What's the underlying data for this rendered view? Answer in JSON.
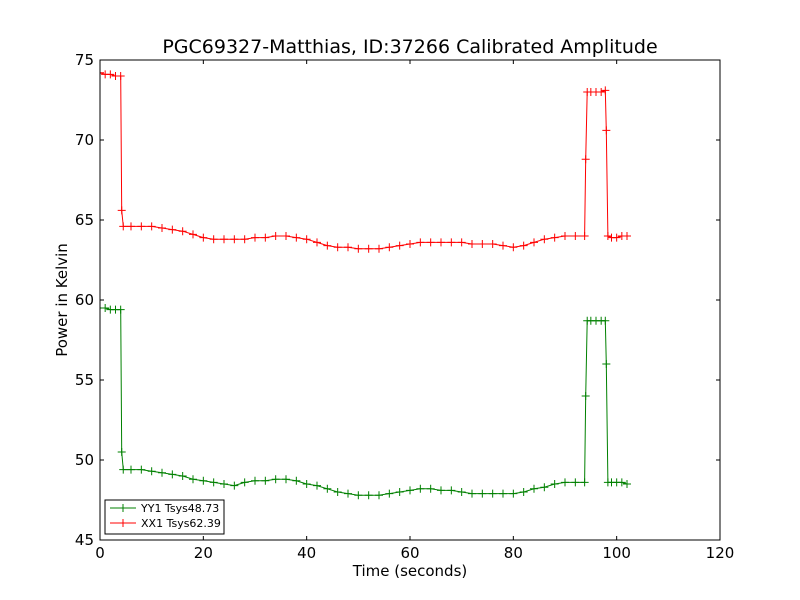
{
  "chart_data": {
    "type": "line",
    "title": "PGC69327-Matthias, ID:37266 Calibrated Amplitude",
    "xlabel": "Time (seconds)",
    "ylabel": "Power in Kelvin",
    "xlim": [
      0,
      120
    ],
    "ylim": [
      45,
      75
    ],
    "xticks": [
      0,
      20,
      40,
      60,
      80,
      100,
      120
    ],
    "yticks": [
      45,
      50,
      55,
      60,
      65,
      70,
      75
    ],
    "grid": false,
    "legend": "lower-left",
    "series": [
      {
        "name": "YY1 Tsys48.73",
        "color": "#008000",
        "marker": "+",
        "points": [
          [
            0,
            59.5
          ],
          [
            1,
            59.5
          ],
          [
            2,
            59.4
          ],
          [
            3,
            59.4
          ],
          [
            4,
            59.4
          ],
          [
            4.2,
            50.5
          ],
          [
            4.5,
            49.4
          ],
          [
            6,
            49.4
          ],
          [
            8,
            49.4
          ],
          [
            10,
            49.3
          ],
          [
            12,
            49.2
          ],
          [
            14,
            49.1
          ],
          [
            16,
            49.0
          ],
          [
            18,
            48.8
          ],
          [
            20,
            48.7
          ],
          [
            22,
            48.6
          ],
          [
            24,
            48.5
          ],
          [
            26,
            48.4
          ],
          [
            28,
            48.6
          ],
          [
            30,
            48.7
          ],
          [
            32,
            48.7
          ],
          [
            34,
            48.8
          ],
          [
            36,
            48.8
          ],
          [
            38,
            48.7
          ],
          [
            40,
            48.5
          ],
          [
            42,
            48.4
          ],
          [
            44,
            48.2
          ],
          [
            46,
            48.0
          ],
          [
            48,
            47.9
          ],
          [
            50,
            47.8
          ],
          [
            52,
            47.8
          ],
          [
            54,
            47.8
          ],
          [
            56,
            47.9
          ],
          [
            58,
            48.0
          ],
          [
            60,
            48.1
          ],
          [
            62,
            48.2
          ],
          [
            64,
            48.2
          ],
          [
            66,
            48.1
          ],
          [
            68,
            48.1
          ],
          [
            70,
            48.0
          ],
          [
            72,
            47.9
          ],
          [
            74,
            47.9
          ],
          [
            76,
            47.9
          ],
          [
            78,
            47.9
          ],
          [
            80,
            47.9
          ],
          [
            82,
            48.0
          ],
          [
            84,
            48.2
          ],
          [
            86,
            48.3
          ],
          [
            88,
            48.5
          ],
          [
            90,
            48.6
          ],
          [
            92,
            48.6
          ],
          [
            93.8,
            48.6
          ],
          [
            94,
            54.0
          ],
          [
            94.3,
            58.7
          ],
          [
            95,
            58.7
          ],
          [
            96,
            58.7
          ],
          [
            97,
            58.7
          ],
          [
            97.8,
            58.7
          ],
          [
            98,
            56.0
          ],
          [
            98.3,
            48.6
          ],
          [
            99,
            48.6
          ],
          [
            100,
            48.6
          ],
          [
            101,
            48.6
          ],
          [
            102,
            48.5
          ]
        ]
      },
      {
        "name": "XX1 Tsys62.39",
        "color": "#ff0000",
        "marker": "+",
        "points": [
          [
            0,
            74.2
          ],
          [
            1,
            74.1
          ],
          [
            2,
            74.1
          ],
          [
            3,
            74.0
          ],
          [
            4,
            74.0
          ],
          [
            4.2,
            65.6
          ],
          [
            4.5,
            64.6
          ],
          [
            6,
            64.6
          ],
          [
            8,
            64.6
          ],
          [
            10,
            64.6
          ],
          [
            12,
            64.5
          ],
          [
            14,
            64.4
          ],
          [
            16,
            64.3
          ],
          [
            18,
            64.1
          ],
          [
            20,
            63.9
          ],
          [
            22,
            63.8
          ],
          [
            24,
            63.8
          ],
          [
            26,
            63.8
          ],
          [
            28,
            63.8
          ],
          [
            30,
            63.9
          ],
          [
            32,
            63.9
          ],
          [
            34,
            64.0
          ],
          [
            36,
            64.0
          ],
          [
            38,
            63.9
          ],
          [
            40,
            63.8
          ],
          [
            42,
            63.6
          ],
          [
            44,
            63.4
          ],
          [
            46,
            63.3
          ],
          [
            48,
            63.3
          ],
          [
            50,
            63.2
          ],
          [
            52,
            63.2
          ],
          [
            54,
            63.2
          ],
          [
            56,
            63.3
          ],
          [
            58,
            63.4
          ],
          [
            60,
            63.5
          ],
          [
            62,
            63.6
          ],
          [
            64,
            63.6
          ],
          [
            66,
            63.6
          ],
          [
            68,
            63.6
          ],
          [
            70,
            63.6
          ],
          [
            72,
            63.5
          ],
          [
            74,
            63.5
          ],
          [
            76,
            63.5
          ],
          [
            78,
            63.4
          ],
          [
            80,
            63.3
          ],
          [
            82,
            63.4
          ],
          [
            84,
            63.6
          ],
          [
            86,
            63.8
          ],
          [
            88,
            63.9
          ],
          [
            90,
            64.0
          ],
          [
            92,
            64.0
          ],
          [
            93.8,
            64.0
          ],
          [
            94,
            68.8
          ],
          [
            94.3,
            73.0
          ],
          [
            95,
            73.0
          ],
          [
            96,
            73.0
          ],
          [
            97,
            73.0
          ],
          [
            97.8,
            73.1
          ],
          [
            98,
            70.6
          ],
          [
            98.3,
            64.0
          ],
          [
            99,
            63.9
          ],
          [
            100,
            63.9
          ],
          [
            101,
            64.0
          ],
          [
            102,
            64.0
          ]
        ]
      }
    ]
  }
}
